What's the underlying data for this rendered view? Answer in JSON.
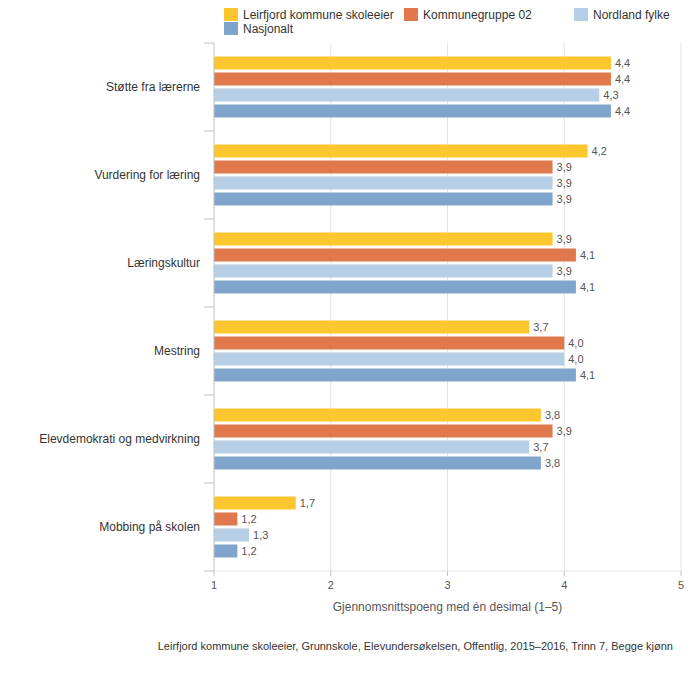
{
  "chart_data": {
    "type": "bar",
    "orientation": "horizontal",
    "categories": [
      "Støtte fra lærerne",
      "Vurdering for læring",
      "Læringskultur",
      "Mestring",
      "Elevdemokrati og medvirkning",
      "Mobbing på skolen"
    ],
    "series": [
      {
        "name": "Leirfjord kommune skoleeier",
        "color": "#fcc62f",
        "values": [
          4.4,
          4.2,
          3.9,
          3.7,
          3.8,
          1.7
        ],
        "value_labels": [
          "4,4",
          "4,2",
          "3,9",
          "3,7",
          "3,8",
          "1,7"
        ]
      },
      {
        "name": "Kommunegruppe 02",
        "color": "#e0784c",
        "values": [
          4.4,
          3.9,
          4.1,
          4.0,
          3.9,
          1.2
        ],
        "value_labels": [
          "4,4",
          "3,9",
          "4,1",
          "4,0",
          "3,9",
          "1,2"
        ]
      },
      {
        "name": "Nordland fylke",
        "color": "#b6cee6",
        "values": [
          4.3,
          3.9,
          3.9,
          4.0,
          3.7,
          1.3
        ],
        "value_labels": [
          "4,3",
          "3,9",
          "3,9",
          "4,0",
          "3,7",
          "1,3"
        ]
      },
      {
        "name": "Nasjonalt",
        "color": "#7fa5cc",
        "values": [
          4.4,
          3.9,
          4.1,
          4.1,
          3.8,
          1.2
        ],
        "value_labels": [
          "4,4",
          "3,9",
          "4,1",
          "4,1",
          "3,8",
          "1,2"
        ]
      }
    ],
    "xlim": [
      1,
      5
    ],
    "xticks": [
      1,
      2,
      3,
      4,
      5
    ],
    "x_label": "Gjennomsnittspoeng med én desimal (1–5)",
    "annotations": [
      "Leirfjord kommune skoleeier, Grunnskole, Elevundersøkelsen, Offentlig, 2015–2016, Trinn 7, Begge kjønn"
    ],
    "grid": true,
    "data_labels": true,
    "legend": "top"
  }
}
